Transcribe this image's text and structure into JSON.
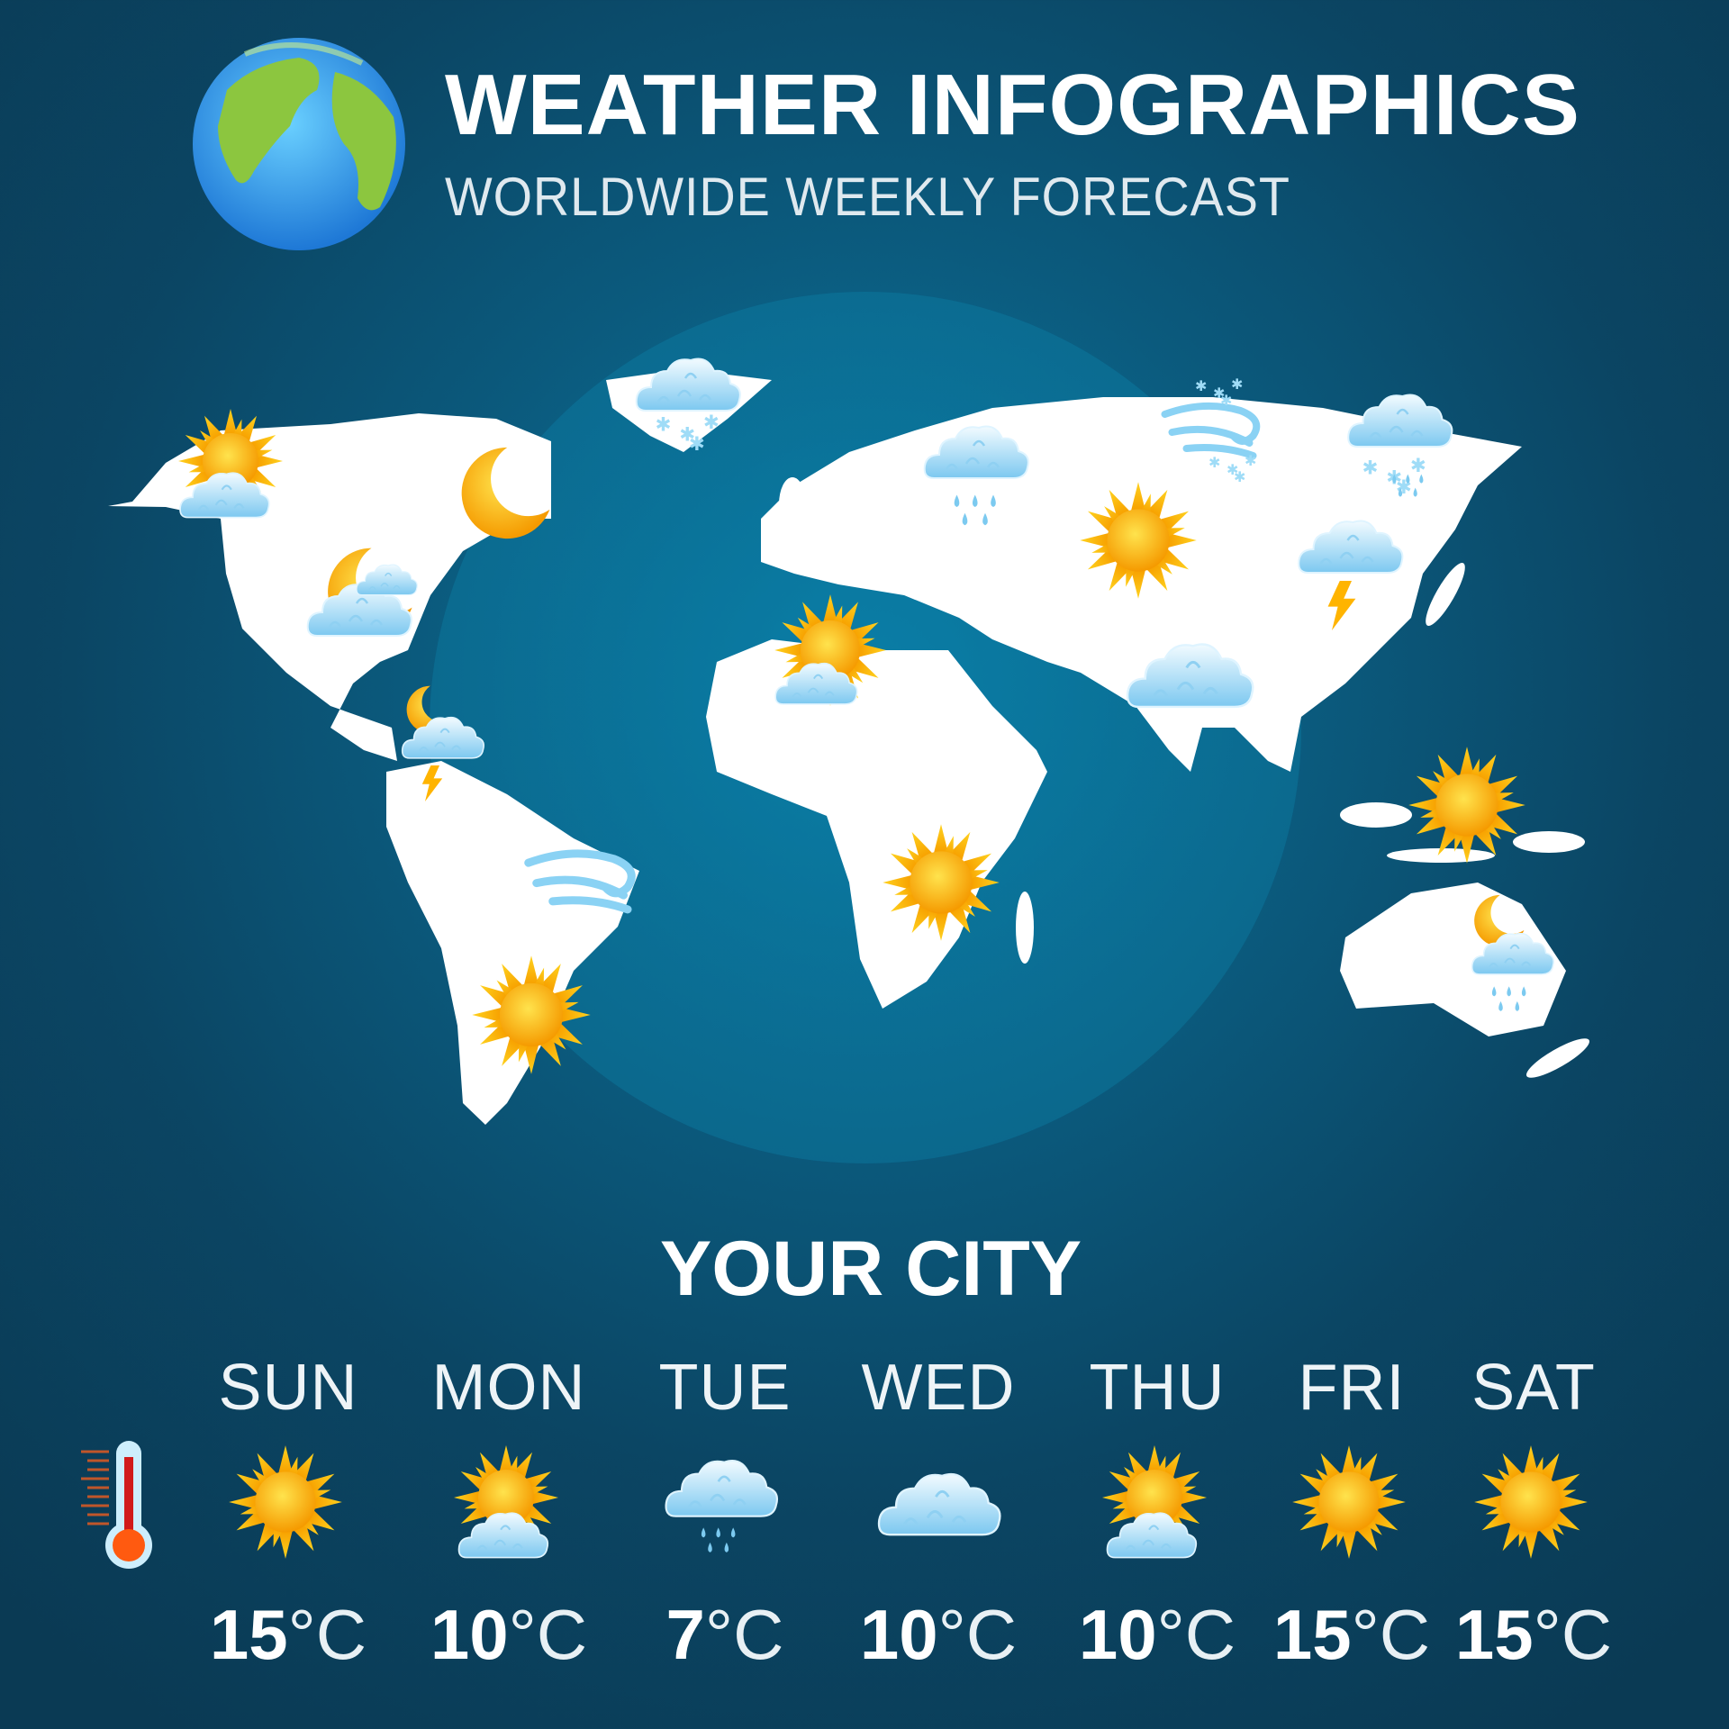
{
  "header": {
    "title": "WEATHER INFOGRAPHICS",
    "subtitle": "WORLDWIDE WEEKLY FORECAST",
    "logo_icon": "earth-globe-icon"
  },
  "map": {
    "icons": [
      {
        "region": "alaska",
        "icon": "sun-cloud"
      },
      {
        "region": "canada-east",
        "icon": "moon"
      },
      {
        "region": "usa",
        "icon": "moon-cloud"
      },
      {
        "region": "central-america",
        "icon": "moon-cloud-thunderstorm"
      },
      {
        "region": "brazil-east",
        "icon": "wind"
      },
      {
        "region": "argentina",
        "icon": "sun"
      },
      {
        "region": "greenland",
        "icon": "cloud-snow"
      },
      {
        "region": "scandinavia",
        "icon": "cloud-rain"
      },
      {
        "region": "siberia",
        "icon": "snow-wind"
      },
      {
        "region": "russia-far-east",
        "icon": "cloud-snow-rain"
      },
      {
        "region": "central-asia",
        "icon": "sun"
      },
      {
        "region": "china",
        "icon": "cloud-thunderstorm"
      },
      {
        "region": "north-africa",
        "icon": "sun-cloud"
      },
      {
        "region": "india",
        "icon": "cloud"
      },
      {
        "region": "southern-africa",
        "icon": "sun"
      },
      {
        "region": "indonesia",
        "icon": "sun"
      },
      {
        "region": "australia",
        "icon": "moon-cloud-rain"
      }
    ]
  },
  "forecast": {
    "city": "YOUR CITY",
    "thermometer_icon": "thermometer-icon",
    "unit": "°C",
    "days": [
      {
        "day": "SUN",
        "icon": "sun",
        "temp": "15"
      },
      {
        "day": "MON",
        "icon": "sun-cloud",
        "temp": "10"
      },
      {
        "day": "TUE",
        "icon": "cloud-rain",
        "temp": "7"
      },
      {
        "day": "WED",
        "icon": "cloud",
        "temp": "10"
      },
      {
        "day": "THU",
        "icon": "sun-cloud",
        "temp": "10"
      },
      {
        "day": "FRI",
        "icon": "sun",
        "temp": "15"
      },
      {
        "day": "SAT",
        "icon": "sun",
        "temp": "15"
      }
    ]
  },
  "colors": {
    "background": "#0b4563",
    "ocean_glow": "#0a7aa3",
    "land": "#ffffff",
    "sun": "#ffb400",
    "cloud": "#a9dcf5"
  }
}
